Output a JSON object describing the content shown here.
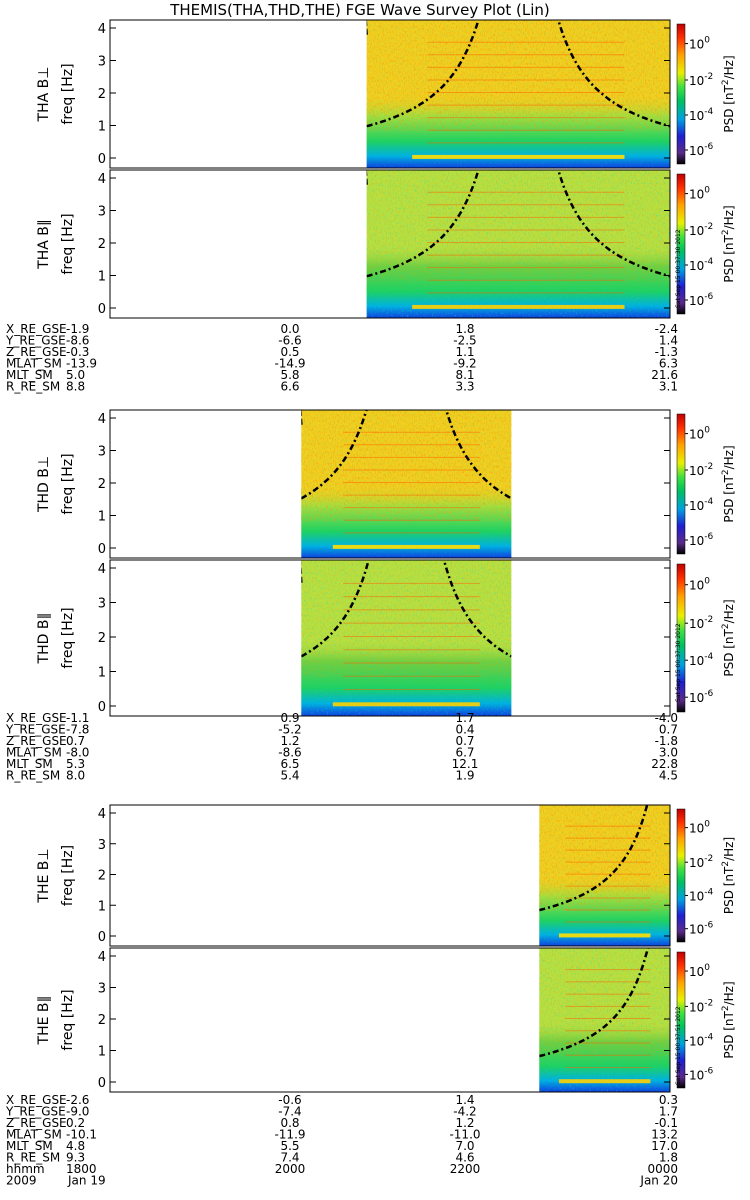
{
  "title": "THEMIS(THA,THD,THE) FGE Wave Survey Plot (Lin)",
  "colorbar": {
    "label_main": "PSD [nT",
    "label_exp": "2",
    "label_tail": "/Hz]",
    "ticks": [
      {
        "mant": "10",
        "exp": "0"
      },
      {
        "mant": "10",
        "exp": "-2"
      },
      {
        "mant": "10",
        "exp": "-4"
      },
      {
        "mant": "10",
        "exp": "-6"
      }
    ]
  },
  "timestamp": "Sat Sep 15 00:37:30 2012",
  "timestamp_the": "Sat Sep 15 00:37:51 2012",
  "probes": [
    {
      "panels": [
        {
          "label": "THA B⊥",
          "ylabel": "freq [Hz]",
          "ytick_labels": [
            "0",
            "1",
            "2",
            "3",
            "4"
          ]
        },
        {
          "label": "THA B∥",
          "ylabel": "freq [Hz]",
          "ytick_labels": [
            "0",
            "1",
            "2",
            "3",
            "4"
          ]
        }
      ],
      "ephem": [
        {
          "name": "X_RE_GSE",
          "values": [
            "-1.9",
            "0.0",
            "1.8",
            "-2.4"
          ]
        },
        {
          "name": "Y_RE_GSE",
          "values": [
            "-8.6",
            "-6.6",
            "-2.5",
            "1.4"
          ]
        },
        {
          "name": "Z_RE_GSE",
          "values": [
            "-0.3",
            "0.5",
            "1.1",
            "-1.3"
          ]
        },
        {
          "name": "MLAT_SM",
          "values": [
            "-13.9",
            "-14.9",
            "-9.2",
            "6.3"
          ]
        },
        {
          "name": "MLT_SM",
          "values": [
            "5.0",
            "5.8",
            "8.1",
            "21.6"
          ]
        },
        {
          "name": "R_RE_SM",
          "values": [
            "8.8",
            "6.6",
            "3.3",
            "3.1"
          ]
        }
      ]
    },
    {
      "panels": [
        {
          "label": "THD B⊥",
          "ylabel": "freq [Hz]",
          "ytick_labels": [
            "0",
            "1",
            "2",
            "3",
            "4"
          ]
        },
        {
          "label": "THD B∥",
          "ylabel": "freq [Hz]",
          "ytick_labels": [
            "0",
            "1",
            "2",
            "3",
            "4"
          ]
        }
      ],
      "ephem": [
        {
          "name": "X_RE_GSE",
          "values": [
            "-1.1",
            "0.9",
            "1.7",
            "-4.0"
          ]
        },
        {
          "name": "Y_RE_GSE",
          "values": [
            "-7.8",
            "-5.2",
            "0.4",
            "0.7"
          ]
        },
        {
          "name": "Z_RE_GSE",
          "values": [
            "0.7",
            "1.2",
            "0.7",
            "-1.8"
          ]
        },
        {
          "name": "MLAT_SM",
          "values": [
            "-8.0",
            "-8.6",
            "6.7",
            "3.0"
          ]
        },
        {
          "name": "MLT_SM",
          "values": [
            "5.3",
            "6.5",
            "12.1",
            "22.8"
          ]
        },
        {
          "name": "R_RE_SM",
          "values": [
            "8.0",
            "5.4",
            "1.9",
            "4.5"
          ]
        }
      ]
    },
    {
      "panels": [
        {
          "label": "THE B⊥",
          "ylabel": "freq [Hz]",
          "ytick_labels": [
            "0",
            "1",
            "2",
            "3",
            "4"
          ]
        },
        {
          "label": "THE B∥",
          "ylabel": "freq [Hz]",
          "ytick_labels": [
            "0",
            "1",
            "2",
            "3",
            "4"
          ]
        }
      ],
      "ephem": [
        {
          "name": "X_RE_GSE",
          "values": [
            "-2.6",
            "-0.6",
            "1.4",
            "0.3"
          ]
        },
        {
          "name": "Y_RE_GSE",
          "values": [
            "-9.0",
            "-7.4",
            "-4.2",
            "1.7"
          ]
        },
        {
          "name": "Z_RE_GSE",
          "values": [
            "0.2",
            "0.8",
            "1.2",
            "-0.1"
          ]
        },
        {
          "name": "MLAT_SM",
          "values": [
            "-10.1",
            "-11.9",
            "-11.0",
            "13.2"
          ]
        },
        {
          "name": "MLT_SM",
          "values": [
            "4.8",
            "5.5",
            "7.0",
            "17.0"
          ]
        },
        {
          "name": "R_RE_SM",
          "values": [
            "9.3",
            "7.4",
            "4.6",
            "1.8"
          ]
        }
      ],
      "time_axis": {
        "row_label": "hhmm",
        "ticks": [
          "1800",
          "2000",
          "2200",
          "0000"
        ],
        "year": "2009",
        "date_start": "Jan 19",
        "date_end": "Jan 20"
      }
    }
  ],
  "chart_data": {
    "type": "heatmap",
    "title": "THEMIS(THA,THD,THE) FGE Wave Survey Plot (Lin)",
    "x_range": [
      "2009-01-19 18:00",
      "2009-01-20 00:00"
    ],
    "y_range": [
      0,
      4
    ],
    "ylabel": "freq [Hz]",
    "colorbar_range_log10": [
      -7,
      1
    ],
    "colorbar_label": "PSD [nT^2/Hz]",
    "colorscale": [
      "#000000",
      "#5a2a8a",
      "#2020d0",
      "#00a0e0",
      "#00c060",
      "#40e040",
      "#e8f000",
      "#ffa000",
      "#ff3000",
      "#c00000"
    ],
    "x_tick_labels": [
      "1800",
      "2000",
      "2200",
      "0000"
    ],
    "coverage_hours": [
      {
        "probe": "THA",
        "start": 2.75,
        "end": 6.0
      },
      {
        "probe": "THD",
        "start": 2.05,
        "end": 4.3
      },
      {
        "probe": "THE",
        "start": 4.6,
        "end": 6.0
      }
    ],
    "panels": [
      "THA B⊥",
      "THA B∥",
      "THD B⊥",
      "THD B∥",
      "THE B⊥",
      "THE B∥"
    ],
    "grid": false
  }
}
